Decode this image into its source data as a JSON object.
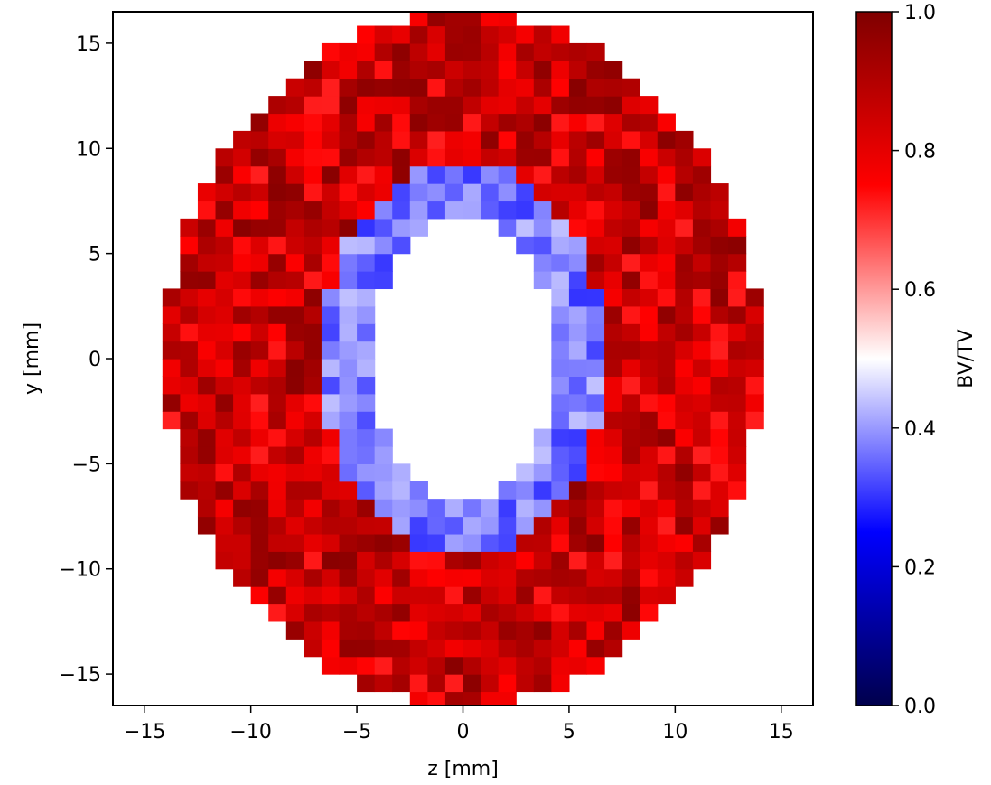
{
  "chart_data": {
    "type": "heatmap",
    "title": "",
    "xlabel": "z [mm]",
    "ylabel": "y [mm]",
    "xlim": [
      -16.5,
      16.5
    ],
    "ylim": [
      -16.5,
      16.5
    ],
    "xticks": [
      -15,
      -10,
      -5,
      0,
      5,
      10,
      15
    ],
    "xtick_labels": [
      "−15",
      "−10",
      "−5",
      "0",
      "5",
      "10",
      "15"
    ],
    "yticks": [
      -15,
      -10,
      -5,
      0,
      5,
      10,
      15
    ],
    "ytick_labels": [
      "−15",
      "−10",
      "−5",
      "0",
      "5",
      "10",
      "15"
    ],
    "grid": false,
    "colormap": "seismic",
    "colormap_stops": [
      "#00004c",
      "#0000ff",
      "#ffffff",
      "#ff0000",
      "#7f0000"
    ],
    "colorbar": {
      "label": "BV/TV",
      "vmin": 0.0,
      "vmax": 1.0,
      "ticks": [
        0.0,
        0.2,
        0.4,
        0.6,
        0.8,
        1.0
      ],
      "tick_labels": [
        "0.0",
        "0.2",
        "0.4",
        "0.6",
        "0.8",
        "1.0"
      ]
    },
    "cell_size_mm": 0.8333,
    "structure": {
      "shape": "elliptical annulus centered at origin",
      "outer_semi_axis_z": 14.0,
      "outer_semi_axis_y": 16.5,
      "inner_semi_axis_z": 4.2,
      "inner_semi_axis_y": 6.8,
      "inner_ring_width_mm": 2.6,
      "inner_region_value": "no data (white)",
      "outer_cortex_value_range": [
        0.72,
        0.98
      ],
      "inner_ring_value_range": [
        0.3,
        0.44
      ]
    }
  }
}
